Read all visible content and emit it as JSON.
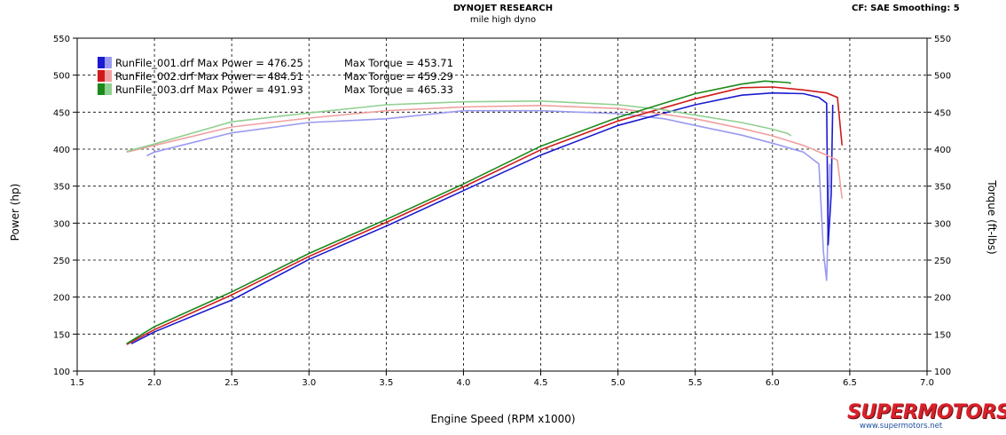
{
  "header": {
    "title": "DYNOJET RESEARCH",
    "subtitle": "mile high dyno",
    "settings": "CF: SAE  Smoothing: 5"
  },
  "chart_data": {
    "type": "line",
    "xlabel": "Engine Speed (RPM x1000)",
    "ylabel_left": "Power (hp)",
    "ylabel_right": "Torque (ft-lbs)",
    "xlim": [
      1.5,
      7.0
    ],
    "ylim": [
      100,
      550
    ],
    "x_ticks": [
      "1.5",
      "2.0",
      "2.5",
      "3.0",
      "3.5",
      "4.0",
      "4.5",
      "5.0",
      "5.5",
      "6.0",
      "6.5",
      "7.0"
    ],
    "y_ticks": [
      "100",
      "150",
      "200",
      "250",
      "300",
      "350",
      "400",
      "450",
      "500",
      "550"
    ],
    "grid": true,
    "legend_position": "top-left",
    "series": [
      {
        "name": "RunFile_001.drf",
        "label": "RunFile_001.drf Max Power = 476.25",
        "torque_label": "Max Torque = 453.71",
        "color": "#1a1ad0",
        "light_color": "#9a9af0",
        "power": [
          [
            1.85,
            137
          ],
          [
            2.0,
            153
          ],
          [
            2.5,
            196
          ],
          [
            3.0,
            251
          ],
          [
            3.5,
            296
          ],
          [
            4.0,
            344
          ],
          [
            4.5,
            392
          ],
          [
            5.0,
            432
          ],
          [
            5.5,
            460
          ],
          [
            5.8,
            473
          ],
          [
            6.0,
            476
          ],
          [
            6.2,
            475
          ],
          [
            6.3,
            470
          ],
          [
            6.35,
            462
          ],
          [
            6.36,
            270
          ],
          [
            6.38,
            340
          ],
          [
            6.39,
            460
          ]
        ],
        "torque": [
          [
            1.95,
            391
          ],
          [
            2.0,
            396
          ],
          [
            2.5,
            422
          ],
          [
            3.0,
            436
          ],
          [
            3.5,
            441
          ],
          [
            4.0,
            452
          ],
          [
            4.5,
            452
          ],
          [
            5.0,
            448
          ],
          [
            5.3,
            441
          ],
          [
            5.5,
            432
          ],
          [
            5.8,
            419
          ],
          [
            6.0,
            408
          ],
          [
            6.2,
            396
          ],
          [
            6.3,
            380
          ],
          [
            6.33,
            260
          ],
          [
            6.35,
            222
          ],
          [
            6.37,
            380
          ]
        ]
      },
      {
        "name": "RunFile_002.drf",
        "label": "RunFile_002.drf Max Power = 484.51",
        "torque_label": "Max Torque = 459.29",
        "color": "#d01a1a",
        "light_color": "#f0a0a0",
        "power": [
          [
            1.82,
            136
          ],
          [
            2.0,
            156
          ],
          [
            2.5,
            203
          ],
          [
            3.0,
            255
          ],
          [
            3.5,
            301
          ],
          [
            4.0,
            349
          ],
          [
            4.5,
            399
          ],
          [
            5.0,
            438
          ],
          [
            5.5,
            468
          ],
          [
            5.8,
            483
          ],
          [
            6.0,
            484
          ],
          [
            6.2,
            480
          ],
          [
            6.35,
            476
          ],
          [
            6.42,
            470
          ],
          [
            6.45,
            405
          ]
        ],
        "torque": [
          [
            1.82,
            396
          ],
          [
            2.0,
            405
          ],
          [
            2.5,
            430
          ],
          [
            3.0,
            442
          ],
          [
            3.5,
            452
          ],
          [
            4.0,
            457
          ],
          [
            4.5,
            459
          ],
          [
            5.0,
            455
          ],
          [
            5.3,
            447
          ],
          [
            5.5,
            441
          ],
          [
            5.8,
            428
          ],
          [
            6.0,
            418
          ],
          [
            6.2,
            405
          ],
          [
            6.35,
            392
          ],
          [
            6.42,
            385
          ],
          [
            6.45,
            333
          ]
        ]
      },
      {
        "name": "RunFile_003.drf",
        "label": "RunFile_003.drf Max Power = 491.93",
        "torque_label": "Max Torque = 465.33",
        "color": "#1a8a1a",
        "light_color": "#90d090",
        "power": [
          [
            1.82,
            137
          ],
          [
            2.0,
            160
          ],
          [
            2.5,
            207
          ],
          [
            3.0,
            259
          ],
          [
            3.5,
            305
          ],
          [
            4.0,
            353
          ],
          [
            4.5,
            404
          ],
          [
            5.0,
            443
          ],
          [
            5.5,
            475
          ],
          [
            5.8,
            488
          ],
          [
            5.95,
            492
          ],
          [
            6.1,
            490
          ],
          [
            6.12,
            489
          ]
        ],
        "torque": [
          [
            1.82,
            397
          ],
          [
            2.0,
            407
          ],
          [
            2.5,
            437
          ],
          [
            3.0,
            449
          ],
          [
            3.5,
            460
          ],
          [
            4.0,
            464
          ],
          [
            4.5,
            465
          ],
          [
            5.0,
            460
          ],
          [
            5.3,
            453
          ],
          [
            5.5,
            446
          ],
          [
            5.8,
            436
          ],
          [
            6.0,
            427
          ],
          [
            6.1,
            421
          ],
          [
            6.12,
            418
          ]
        ]
      }
    ]
  }
}
